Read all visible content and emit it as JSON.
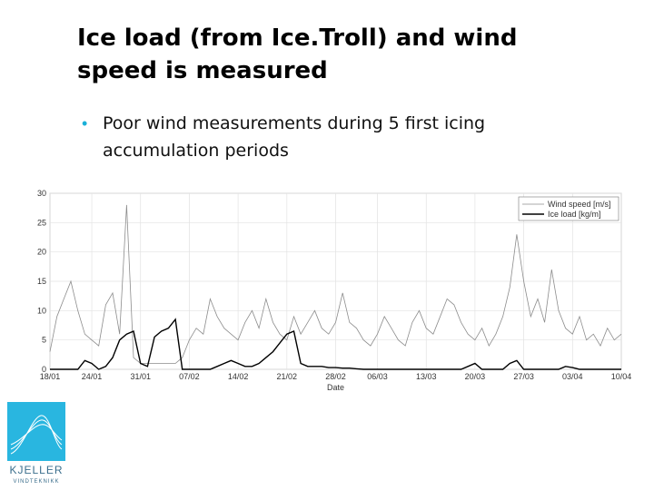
{
  "slide": {
    "title_lines": [
      "Ice load (from Ice.Troll) and wind",
      "speed is measured"
    ],
    "bullets": [
      [
        "Poor wind measurements during 5 first icing",
        "accumulation periods"
      ]
    ]
  },
  "logo": {
    "name": "KJELLER",
    "subname": "VINDTEKNIKK"
  },
  "chart_data": {
    "type": "line",
    "xlabel": "Date",
    "x": [
      "18/01",
      "19/01",
      "20/01",
      "21/01",
      "22/01",
      "23/01",
      "24/01",
      "25/01",
      "26/01",
      "27/01",
      "28/01",
      "29/01",
      "30/01",
      "31/01",
      "01/02",
      "02/02",
      "03/02",
      "04/02",
      "05/02",
      "06/02",
      "07/02",
      "08/02",
      "09/02",
      "10/02",
      "11/02",
      "12/02",
      "13/02",
      "14/02",
      "15/02",
      "16/02",
      "17/02",
      "18/02",
      "19/02",
      "20/02",
      "21/02",
      "22/02",
      "23/02",
      "24/02",
      "25/02",
      "26/02",
      "27/02",
      "28/02",
      "01/03",
      "02/03",
      "03/03",
      "04/03",
      "05/03",
      "06/03",
      "07/03",
      "08/03",
      "09/03",
      "10/03",
      "11/03",
      "12/03",
      "13/03",
      "14/03",
      "15/03",
      "16/03",
      "17/03",
      "18/03",
      "19/03",
      "20/03",
      "21/03",
      "22/03",
      "23/03",
      "24/03",
      "25/03",
      "26/03",
      "27/03",
      "28/03",
      "29/03",
      "30/03",
      "31/03",
      "01/04",
      "02/04",
      "03/04",
      "04/04",
      "05/04",
      "06/04",
      "07/04",
      "08/04",
      "09/04",
      "10/04"
    ],
    "series": [
      {
        "name": "Wind speed [m/s]",
        "color": "#8c8c8c",
        "values": [
          3,
          9,
          12,
          15,
          10,
          6,
          5,
          4,
          11,
          13,
          6,
          28,
          2,
          1,
          1,
          1,
          1,
          1,
          1,
          2,
          5,
          7,
          6,
          12,
          9,
          7,
          6,
          5,
          8,
          10,
          7,
          12,
          8,
          6,
          5,
          9,
          6,
          8,
          10,
          7,
          6,
          8,
          13,
          8,
          7,
          5,
          4,
          6,
          9,
          7,
          5,
          4,
          8,
          10,
          7,
          6,
          9,
          12,
          11,
          8,
          6,
          5,
          7,
          4,
          6,
          9,
          14,
          23,
          15,
          9,
          12,
          8,
          17,
          10,
          7,
          6,
          9,
          5,
          6,
          4,
          7,
          5,
          6
        ]
      },
      {
        "name": "Ice load [kg/m]",
        "color": "#000000",
        "values": [
          0,
          0,
          0,
          0,
          0,
          1.5,
          1,
          0,
          0.5,
          2,
          5,
          6,
          6.5,
          1,
          0.5,
          5.5,
          6.5,
          7,
          8.5,
          0,
          0,
          0,
          0,
          0,
          0.5,
          1,
          1.5,
          1,
          0.5,
          0.5,
          1,
          2,
          3,
          4.5,
          6,
          6.5,
          1,
          0.5,
          0.5,
          0.5,
          0.3,
          0.3,
          0.2,
          0.2,
          0.1,
          0,
          0,
          0,
          0,
          0,
          0,
          0,
          0,
          0,
          0,
          0,
          0,
          0,
          0,
          0,
          0.5,
          1,
          0,
          0,
          0,
          0,
          1,
          1.5,
          0,
          0,
          0,
          0,
          0,
          0,
          0.5,
          0.3,
          0,
          0,
          0,
          0,
          0,
          0,
          0
        ]
      }
    ],
    "xticks": [
      "18/01",
      "24/01",
      "31/01",
      "07/02",
      "14/02",
      "21/02",
      "28/02",
      "06/03",
      "13/03",
      "20/03",
      "27/03",
      "03/04",
      "10/04"
    ],
    "ylim": [
      0,
      30
    ],
    "yticks": [
      0,
      5,
      10,
      15,
      20,
      25,
      30
    ],
    "grid": true,
    "legend": "upper right"
  }
}
